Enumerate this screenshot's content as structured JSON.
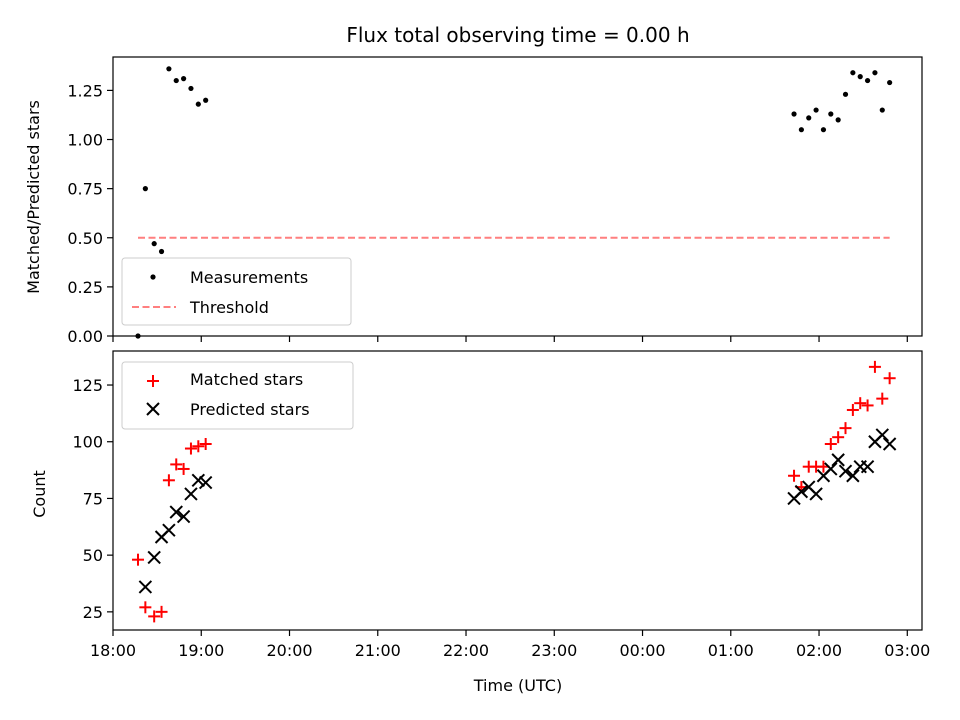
{
  "chart_data": [
    {
      "type": "scatter",
      "title": "Flux total observing time = 0.00 h",
      "ylabel": "Matched/Predicted stars",
      "xlabel": "",
      "xlim": [
        "18:00",
        "03:10"
      ],
      "ylim": [
        0,
        1.42
      ],
      "grid": false,
      "legend_position": "lower-left",
      "y_ticks": [
        "0.00",
        "0.25",
        "0.50",
        "0.75",
        "1.00",
        "1.25"
      ],
      "series": [
        {
          "name": "Measurements",
          "marker": "dot",
          "color": "#000000",
          "points": [
            {
              "x": "18:17",
              "y": 0.0
            },
            {
              "x": "18:22",
              "y": 0.75
            },
            {
              "x": "18:28",
              "y": 0.47
            },
            {
              "x": "18:33",
              "y": 0.43
            },
            {
              "x": "18:38",
              "y": 1.36
            },
            {
              "x": "18:43",
              "y": 1.3
            },
            {
              "x": "18:48",
              "y": 1.31
            },
            {
              "x": "18:53",
              "y": 1.26
            },
            {
              "x": "18:58",
              "y": 1.18
            },
            {
              "x": "19:03",
              "y": 1.2
            },
            {
              "x": "01:43",
              "y": 1.13
            },
            {
              "x": "01:48",
              "y": 1.05
            },
            {
              "x": "01:53",
              "y": 1.11
            },
            {
              "x": "01:58",
              "y": 1.15
            },
            {
              "x": "02:03",
              "y": 1.05
            },
            {
              "x": "02:08",
              "y": 1.13
            },
            {
              "x": "02:13",
              "y": 1.1
            },
            {
              "x": "02:18",
              "y": 1.23
            },
            {
              "x": "02:23",
              "y": 1.34
            },
            {
              "x": "02:28",
              "y": 1.32
            },
            {
              "x": "02:33",
              "y": 1.3
            },
            {
              "x": "02:38",
              "y": 1.34
            },
            {
              "x": "02:43",
              "y": 1.15
            },
            {
              "x": "02:48",
              "y": 1.29
            }
          ]
        },
        {
          "name": "Threshold",
          "marker": "dashed-line",
          "color": "#ff7f7f",
          "points": [
            {
              "x": "18:17",
              "y": 0.5
            },
            {
              "x": "02:48",
              "y": 0.5
            }
          ]
        }
      ]
    },
    {
      "type": "scatter",
      "title": "",
      "ylabel": "Count",
      "xlabel": "Time (UTC)",
      "xlim": [
        "18:00",
        "03:10"
      ],
      "ylim": [
        17,
        140
      ],
      "grid": false,
      "legend_position": "upper-left",
      "y_ticks": [
        "25",
        "50",
        "75",
        "100",
        "125"
      ],
      "x_ticks": [
        "18:00",
        "19:00",
        "20:00",
        "21:00",
        "22:00",
        "23:00",
        "00:00",
        "01:00",
        "02:00",
        "03:00"
      ],
      "series": [
        {
          "name": "Matched stars",
          "marker": "plus",
          "color": "#ff0000",
          "points": [
            {
              "x": "18:17",
              "y": 48
            },
            {
              "x": "18:22",
              "y": 27
            },
            {
              "x": "18:28",
              "y": 23
            },
            {
              "x": "18:33",
              "y": 25
            },
            {
              "x": "18:38",
              "y": 83
            },
            {
              "x": "18:43",
              "y": 90
            },
            {
              "x": "18:48",
              "y": 88
            },
            {
              "x": "18:53",
              "y": 97
            },
            {
              "x": "18:58",
              "y": 98
            },
            {
              "x": "19:03",
              "y": 99
            },
            {
              "x": "01:43",
              "y": 85
            },
            {
              "x": "01:48",
              "y": 80
            },
            {
              "x": "01:53",
              "y": 89
            },
            {
              "x": "01:58",
              "y": 89
            },
            {
              "x": "02:03",
              "y": 89
            },
            {
              "x": "02:08",
              "y": 99
            },
            {
              "x": "02:13",
              "y": 102
            },
            {
              "x": "02:18",
              "y": 106
            },
            {
              "x": "02:23",
              "y": 114
            },
            {
              "x": "02:28",
              "y": 117
            },
            {
              "x": "02:33",
              "y": 116
            },
            {
              "x": "02:38",
              "y": 133
            },
            {
              "x": "02:43",
              "y": 119
            },
            {
              "x": "02:48",
              "y": 128
            }
          ]
        },
        {
          "name": "Predicted stars",
          "marker": "x",
          "color": "#000000",
          "points": [
            {
              "x": "18:22",
              "y": 36
            },
            {
              "x": "18:28",
              "y": 49
            },
            {
              "x": "18:33",
              "y": 58
            },
            {
              "x": "18:38",
              "y": 61
            },
            {
              "x": "18:43",
              "y": 69
            },
            {
              "x": "18:48",
              "y": 67
            },
            {
              "x": "18:53",
              "y": 77
            },
            {
              "x": "18:58",
              "y": 83
            },
            {
              "x": "19:03",
              "y": 82
            },
            {
              "x": "01:43",
              "y": 75
            },
            {
              "x": "01:48",
              "y": 78
            },
            {
              "x": "01:53",
              "y": 80
            },
            {
              "x": "01:58",
              "y": 77
            },
            {
              "x": "02:03",
              "y": 85
            },
            {
              "x": "02:08",
              "y": 88
            },
            {
              "x": "02:13",
              "y": 92
            },
            {
              "x": "02:18",
              "y": 87
            },
            {
              "x": "02:23",
              "y": 85
            },
            {
              "x": "02:28",
              "y": 89
            },
            {
              "x": "02:33",
              "y": 89
            },
            {
              "x": "02:38",
              "y": 100
            },
            {
              "x": "02:43",
              "y": 103
            },
            {
              "x": "02:48",
              "y": 99
            }
          ]
        }
      ]
    }
  ]
}
